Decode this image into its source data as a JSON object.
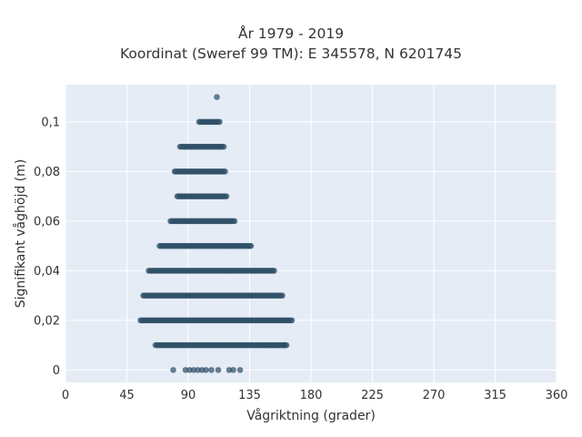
{
  "chart_data": {
    "type": "scatter",
    "title": [
      "År 1979 - 2019",
      "Koordinat (Sweref 99 TM): E 345578, N 6201745"
    ],
    "xlabel": "Vågriktning (grader)",
    "ylabel": "Signifikant våghöjd (m)",
    "xlim": [
      0,
      360
    ],
    "ylim": [
      -0.005,
      0.115
    ],
    "x_ticks": [
      0,
      45,
      90,
      135,
      180,
      225,
      270,
      315,
      360
    ],
    "x_tick_labels": [
      "0",
      "45",
      "90",
      "135",
      "180",
      "225",
      "270",
      "315",
      "360"
    ],
    "y_ticks": [
      0,
      0.02,
      0.04,
      0.06,
      0.08,
      0.1
    ],
    "y_tick_labels": [
      "0",
      "0,02",
      "0,04",
      "0,06",
      "0,08",
      "0,1"
    ],
    "grid": true,
    "marker_color": "#2f5068",
    "plot_background": "#e5ecf6",
    "bands": [
      {
        "y": 0.0,
        "points": [
          79,
          88,
          91,
          94,
          97,
          100,
          103,
          107,
          112,
          120,
          123,
          128
        ]
      },
      {
        "y": 0.01,
        "x_min": 66,
        "x_max": 162,
        "outliers": [
          146,
          150,
          155,
          160
        ]
      },
      {
        "y": 0.02,
        "x_min": 55,
        "x_max": 166
      },
      {
        "y": 0.03,
        "x_min": 57,
        "x_max": 159
      },
      {
        "y": 0.04,
        "x_min": 61,
        "x_max": 153
      },
      {
        "y": 0.05,
        "x_min": 69,
        "x_max": 136
      },
      {
        "y": 0.06,
        "x_min": 77,
        "x_max": 124
      },
      {
        "y": 0.07,
        "x_min": 82,
        "x_max": 118
      },
      {
        "y": 0.08,
        "x_min": 80,
        "x_max": 117
      },
      {
        "y": 0.09,
        "x_min": 84,
        "x_max": 116
      },
      {
        "y": 0.1,
        "x_min": 98,
        "x_max": 113
      },
      {
        "y": 0.11,
        "points": [
          111
        ]
      }
    ]
  }
}
